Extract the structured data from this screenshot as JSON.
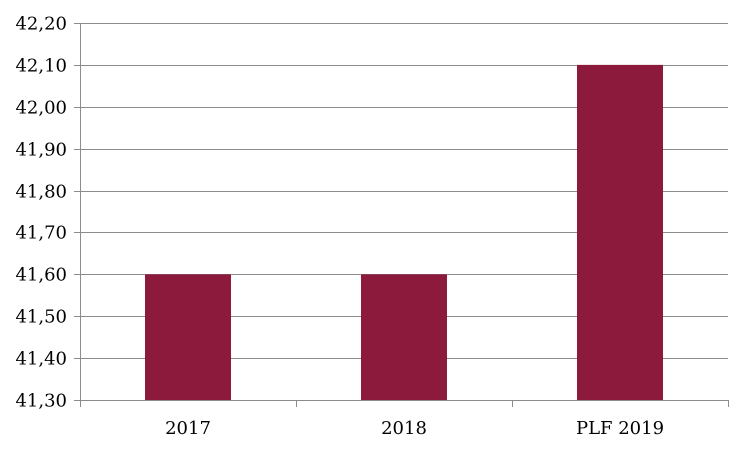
{
  "chart_data": {
    "type": "bar",
    "categories": [
      "2017",
      "2018",
      "PLF 2019"
    ],
    "values": [
      41.6,
      41.6,
      42.1
    ],
    "ylim": [
      41.3,
      42.2
    ],
    "yticks": [
      "41,30",
      "41,40",
      "41,50",
      "41,60",
      "41,70",
      "41,80",
      "41,90",
      "42,00",
      "42,10",
      "42,20"
    ],
    "grid": true,
    "legend": "none",
    "bar_color": "#8B1A3D",
    "title": "",
    "xlabel": "",
    "ylabel": ""
  }
}
